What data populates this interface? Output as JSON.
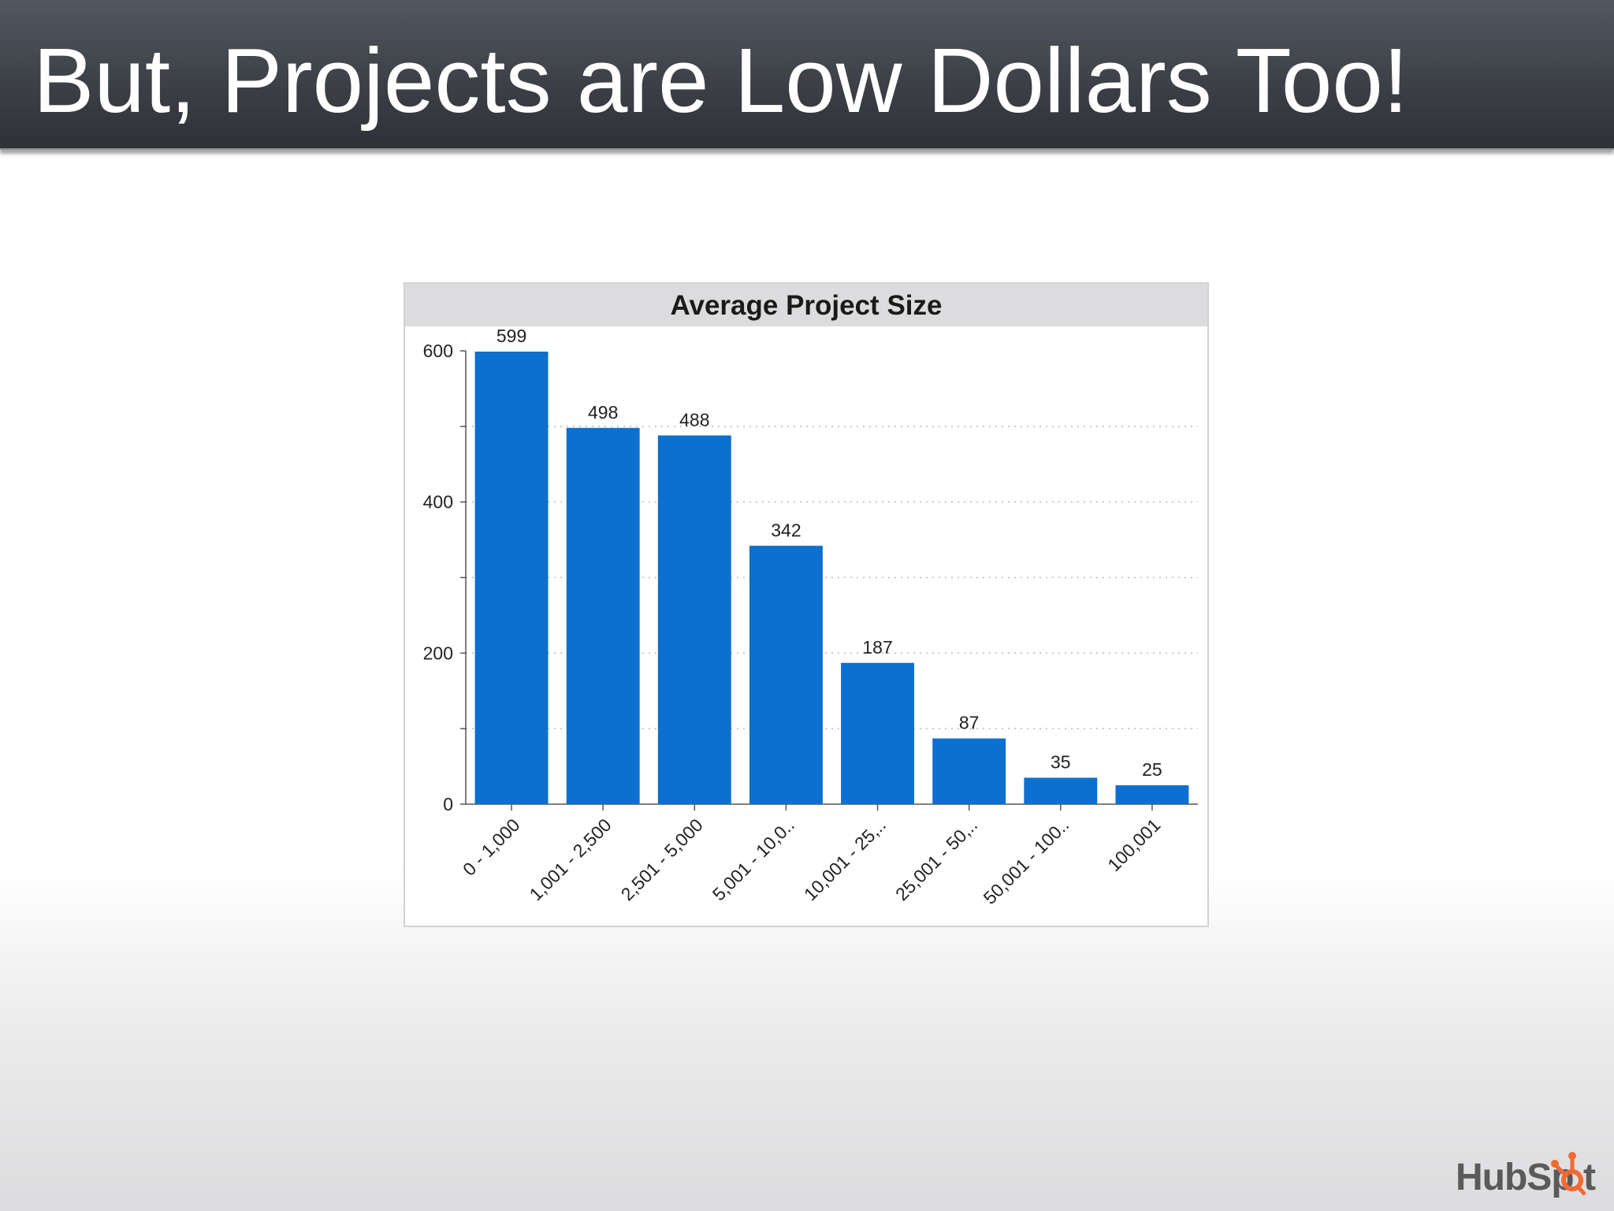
{
  "slide": {
    "title": "But, Projects are Low Dollars Too!",
    "logo_text": "HubSpot"
  },
  "colors": {
    "title_bar": "#3b3f45",
    "bar": "#0d6fcf",
    "logo_text": "#5a5a5a",
    "logo_accent": "#f06a32"
  },
  "chart_data": {
    "type": "bar",
    "title": "Average Project Size",
    "xlabel": "",
    "ylabel": "",
    "categories": [
      "0 - 1,000",
      "1,001 - 2,500",
      "2,501 - 5,000",
      "5,001 - 10,0..",
      "10,001 - 25,..",
      "25,001 - 50,..",
      "50,001 - 100..",
      "100,001"
    ],
    "values": [
      599,
      498,
      488,
      342,
      187,
      87,
      35,
      25
    ],
    "data_labels": [
      "599",
      "498",
      "488",
      "342",
      "187",
      "87",
      "35",
      "25"
    ],
    "ylim": [
      0,
      600
    ],
    "yticks": [
      0,
      200,
      400,
      600
    ],
    "gridlines": [
      100,
      200,
      300,
      400,
      500
    ],
    "grid": true,
    "legend": false
  }
}
